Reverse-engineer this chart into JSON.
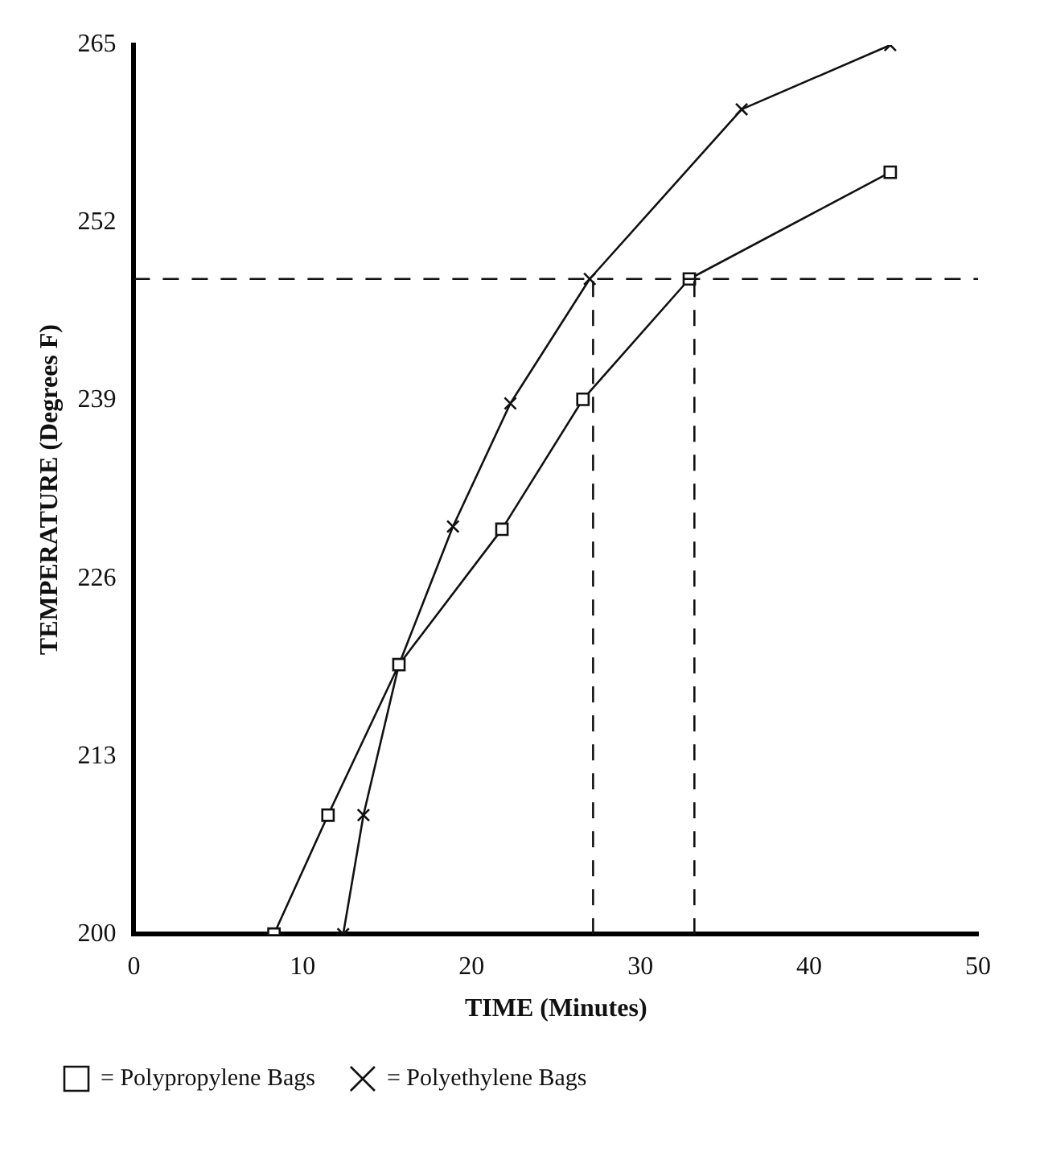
{
  "chart_data": {
    "type": "line",
    "xlabel": "TIME (Minutes)",
    "ylabel": "TEMPERATURE (Degrees F)",
    "xlim": [
      0,
      50
    ],
    "xticks": [
      0,
      10,
      20,
      30,
      40,
      50
    ],
    "ylim": [
      200,
      265
    ],
    "yticks": [
      200,
      213,
      226,
      239,
      252,
      265
    ],
    "grid": false,
    "legend": "bottom",
    "line_style": "solid",
    "series": [
      {
        "name": "= Polypropylene Bags",
        "color": "#111111",
        "marker": "square",
        "x": [
          8.3,
          11.5,
          15.7,
          21.8,
          26.6,
          32.9,
          44.8
        ],
        "values": [
          200,
          208.7,
          219.7,
          229.6,
          239.1,
          247.9,
          255.7
        ]
      },
      {
        "name": "= Polyethylene Bags",
        "color": "#111111",
        "marker": "cross",
        "x": [
          12.4,
          13.6,
          15.7,
          18.9,
          22.3,
          27.0,
          36.0,
          44.8
        ],
        "values": [
          200,
          208.7,
          219.7,
          229.8,
          238.8,
          247.9,
          260.3,
          265
        ]
      }
    ],
    "ref_lines": [
      {
        "axis": "y",
        "value": 247.9,
        "line_style": "dashed",
        "color": "#111111"
      },
      {
        "axis": "x",
        "value": 27.2,
        "line_style": "dashed",
        "color": "#111111"
      },
      {
        "axis": "x",
        "value": 33.2,
        "line_style": "dashed",
        "color": "#111111"
      }
    ]
  }
}
